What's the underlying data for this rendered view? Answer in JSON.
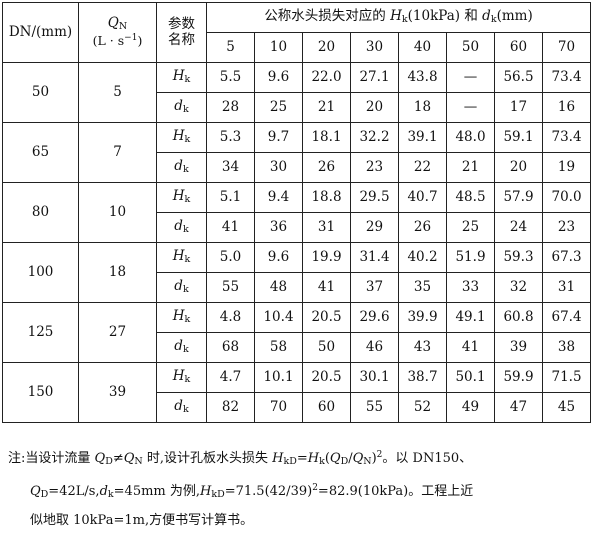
{
  "header": {
    "dn_label": "DN/(mm)",
    "q_symbol": "Q",
    "q_sub": "N",
    "q_unit_pre": "(L · s",
    "q_unit_sup": "−1",
    "q_unit_post": ")",
    "param_line1": "参数",
    "param_line2": "名称",
    "loss_title_pre": "公称水头损失对应的 ",
    "loss_title_h": "H",
    "loss_title_h_sub": "k",
    "loss_title_mid": "(10kPa) 和 ",
    "loss_title_d": "d",
    "loss_title_d_sub": "k",
    "loss_title_post": "(mm)",
    "loss_columns": [
      "5",
      "10",
      "20",
      "30",
      "40",
      "50",
      "60",
      "70"
    ]
  },
  "param_h": {
    "sym": "H",
    "sub": "k"
  },
  "param_d": {
    "sym": "d",
    "sub": "k"
  },
  "rows": [
    {
      "dn": "50",
      "qn": "5",
      "h": [
        "5.5",
        "9.6",
        "22.0",
        "27.1",
        "43.8",
        "—",
        "56.5",
        "73.4"
      ],
      "d": [
        "28",
        "25",
        "21",
        "20",
        "18",
        "—",
        "17",
        "16"
      ]
    },
    {
      "dn": "65",
      "qn": "7",
      "h": [
        "5.3",
        "9.7",
        "18.1",
        "32.2",
        "39.1",
        "48.0",
        "59.1",
        "73.4"
      ],
      "d": [
        "34",
        "30",
        "26",
        "23",
        "22",
        "21",
        "20",
        "19"
      ]
    },
    {
      "dn": "80",
      "qn": "10",
      "h": [
        "5.1",
        "9.4",
        "18.8",
        "29.5",
        "40.7",
        "48.5",
        "57.9",
        "70.0"
      ],
      "d": [
        "41",
        "36",
        "31",
        "29",
        "26",
        "25",
        "24",
        "23"
      ]
    },
    {
      "dn": "100",
      "qn": "18",
      "h": [
        "5.0",
        "9.6",
        "19.9",
        "31.4",
        "40.2",
        "51.9",
        "59.3",
        "67.3"
      ],
      "d": [
        "55",
        "48",
        "41",
        "37",
        "35",
        "33",
        "32",
        "31"
      ]
    },
    {
      "dn": "125",
      "qn": "27",
      "h": [
        "4.8",
        "10.4",
        "20.5",
        "29.6",
        "39.9",
        "49.1",
        "60.8",
        "67.4"
      ],
      "d": [
        "68",
        "58",
        "50",
        "46",
        "43",
        "41",
        "39",
        "38"
      ]
    },
    {
      "dn": "150",
      "qn": "39",
      "h": [
        "4.7",
        "10.1",
        "20.5",
        "30.1",
        "38.7",
        "50.1",
        "59.9",
        "71.5"
      ],
      "d": [
        "82",
        "70",
        "60",
        "55",
        "52",
        "49",
        "47",
        "45"
      ]
    }
  ],
  "note": {
    "line1": "注:当设计流量 Q_D≠Q_N 时,设计孔板水头损失 H_kD=H_k(Q_D/Q_N)²。以 DN150、",
    "line2": "Q_D=42L/s,d_k=45mm 为例,H_kD=71.5(42/39)²=82.9(10kPa)。工程上近",
    "line3": "似地取 10kPa=1m,方便书写计算书。"
  }
}
